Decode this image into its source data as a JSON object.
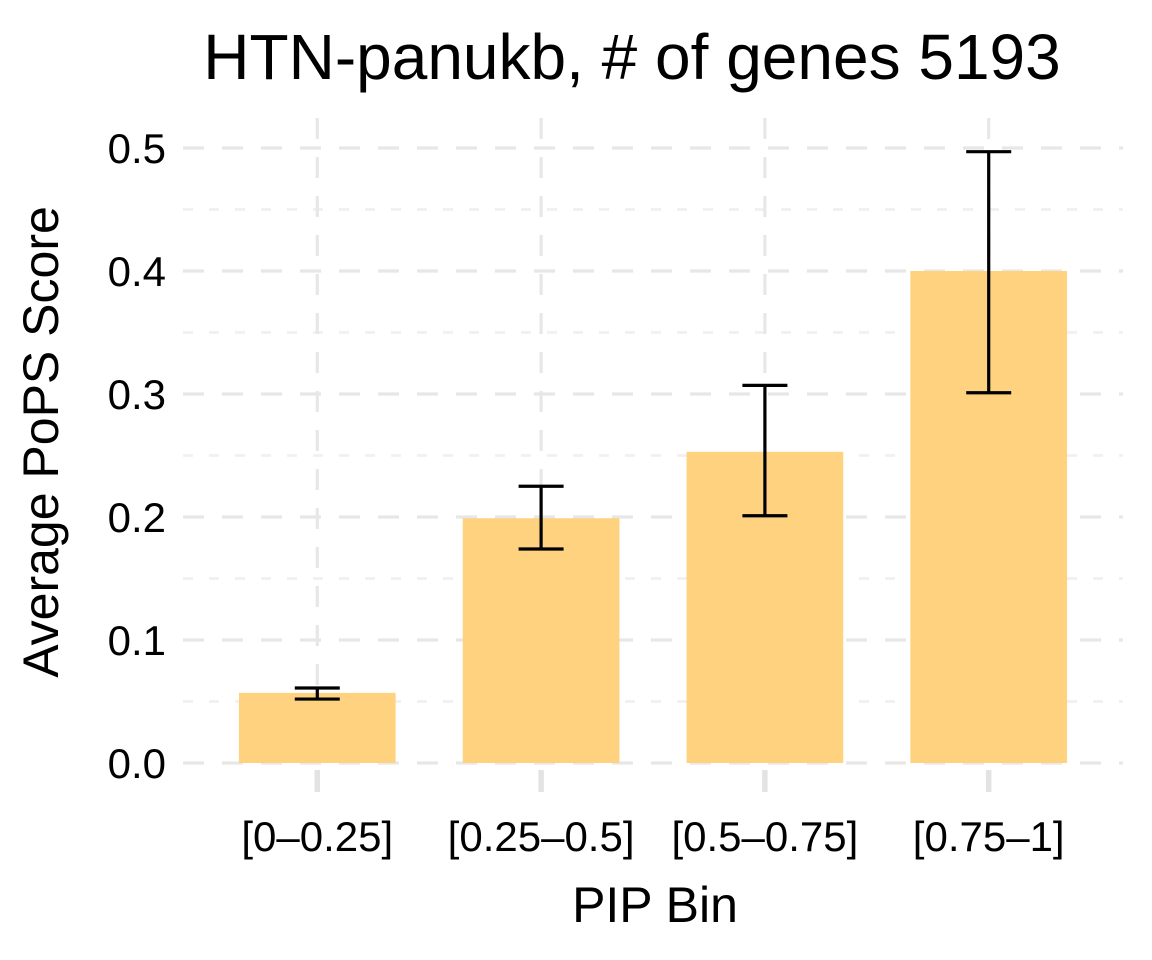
{
  "page": {
    "background_color": "#FFFFFF"
  },
  "chart_data": {
    "type": "bar",
    "title": "HTN-panukb, # of genes 5193",
    "xlabel": "PIP Bin",
    "ylabel": "Average PoPS Score",
    "categories": [
      "[0–0.25]",
      "[0.25–0.5]",
      "[0.5–0.75]",
      "[0.75–1]"
    ],
    "values": [
      0.057,
      0.199,
      0.253,
      0.4
    ],
    "error_low": [
      0.052,
      0.174,
      0.201,
      0.301
    ],
    "error_high": [
      0.061,
      0.225,
      0.307,
      0.497
    ],
    "y_ticks": [
      0,
      0.1,
      0.2,
      0.3,
      0.4,
      0.5
    ],
    "y_tick_labels": [
      "0.0",
      "0.1",
      "0.2",
      "0.3",
      "0.4",
      "0.5"
    ],
    "y_minor_ticks": [
      0.05,
      0.15,
      0.25,
      0.35,
      0.45
    ],
    "ylim": [
      0,
      0.524
    ],
    "legend": "none",
    "grid_style": "dashed",
    "bar_color": "#FED27E",
    "error_bar_color": "#000000",
    "grid_major_color": "#E7E7E7",
    "grid_minor_color": "#F0F0F0",
    "axis_tick_color": "#E3E3E3",
    "text_color": "#000000",
    "background_color": "#FFFFFF"
  }
}
